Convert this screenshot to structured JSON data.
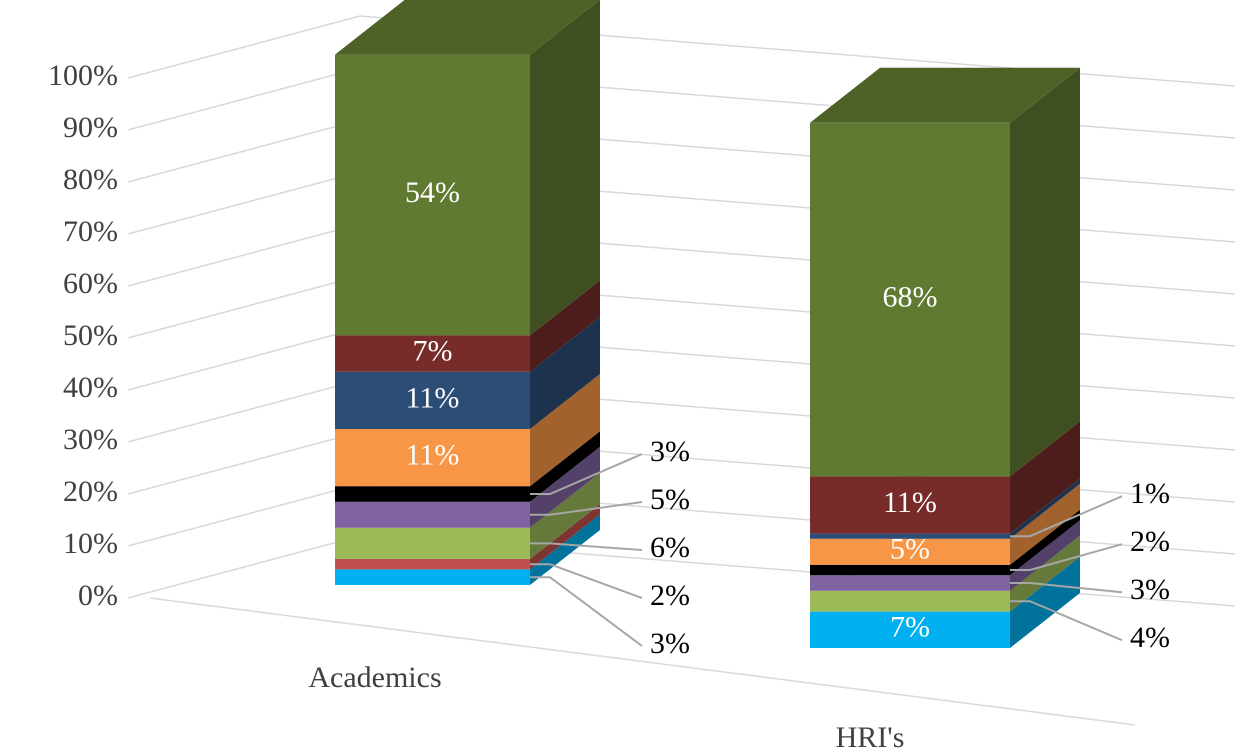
{
  "chart_data": {
    "type": "bar3d_stacked",
    "categories": [
      "Academics",
      "HRI's"
    ],
    "ylim": [
      0,
      100
    ],
    "yticks": [
      {
        "value": 0,
        "label": "0%"
      },
      {
        "value": 10,
        "label": "10%"
      },
      {
        "value": 20,
        "label": "20%"
      },
      {
        "value": 30,
        "label": "30%"
      },
      {
        "value": 40,
        "label": "40%"
      },
      {
        "value": 50,
        "label": "50%"
      },
      {
        "value": 60,
        "label": "60%"
      },
      {
        "value": 70,
        "label": "70%"
      },
      {
        "value": 80,
        "label": "80%"
      },
      {
        "value": 90,
        "label": "90%"
      },
      {
        "value": 100,
        "label": "100%"
      }
    ],
    "grid": true,
    "series": [
      {
        "color": "#00b0f0",
        "values": [
          3,
          7
        ],
        "value_labels": [
          "3%",
          "7%"
        ]
      },
      {
        "color": "#c0504d",
        "values": [
          2,
          null
        ],
        "value_labels": [
          "2%",
          null
        ]
      },
      {
        "color": "#9bbb59",
        "values": [
          6,
          4
        ],
        "value_labels": [
          "6%",
          "4%"
        ]
      },
      {
        "color": "#8064a2",
        "values": [
          5,
          3
        ],
        "value_labels": [
          "5%",
          "3%"
        ]
      },
      {
        "color": "#000000",
        "values": [
          3,
          2
        ],
        "value_labels": [
          "3%",
          "2%"
        ]
      },
      {
        "color": "#f79646",
        "values": [
          11,
          5
        ],
        "value_labels": [
          "11%",
          "5%"
        ]
      },
      {
        "color": "#2c4d75",
        "values": [
          11,
          1
        ],
        "value_labels": [
          "11%",
          "1%"
        ]
      },
      {
        "color": "#772c2a",
        "values": [
          7,
          11
        ],
        "value_labels": [
          "7%",
          "11%"
        ]
      },
      {
        "color": "#617a31",
        "values": [
          54,
          68
        ],
        "value_labels": [
          "54%",
          "68%"
        ]
      }
    ]
  }
}
